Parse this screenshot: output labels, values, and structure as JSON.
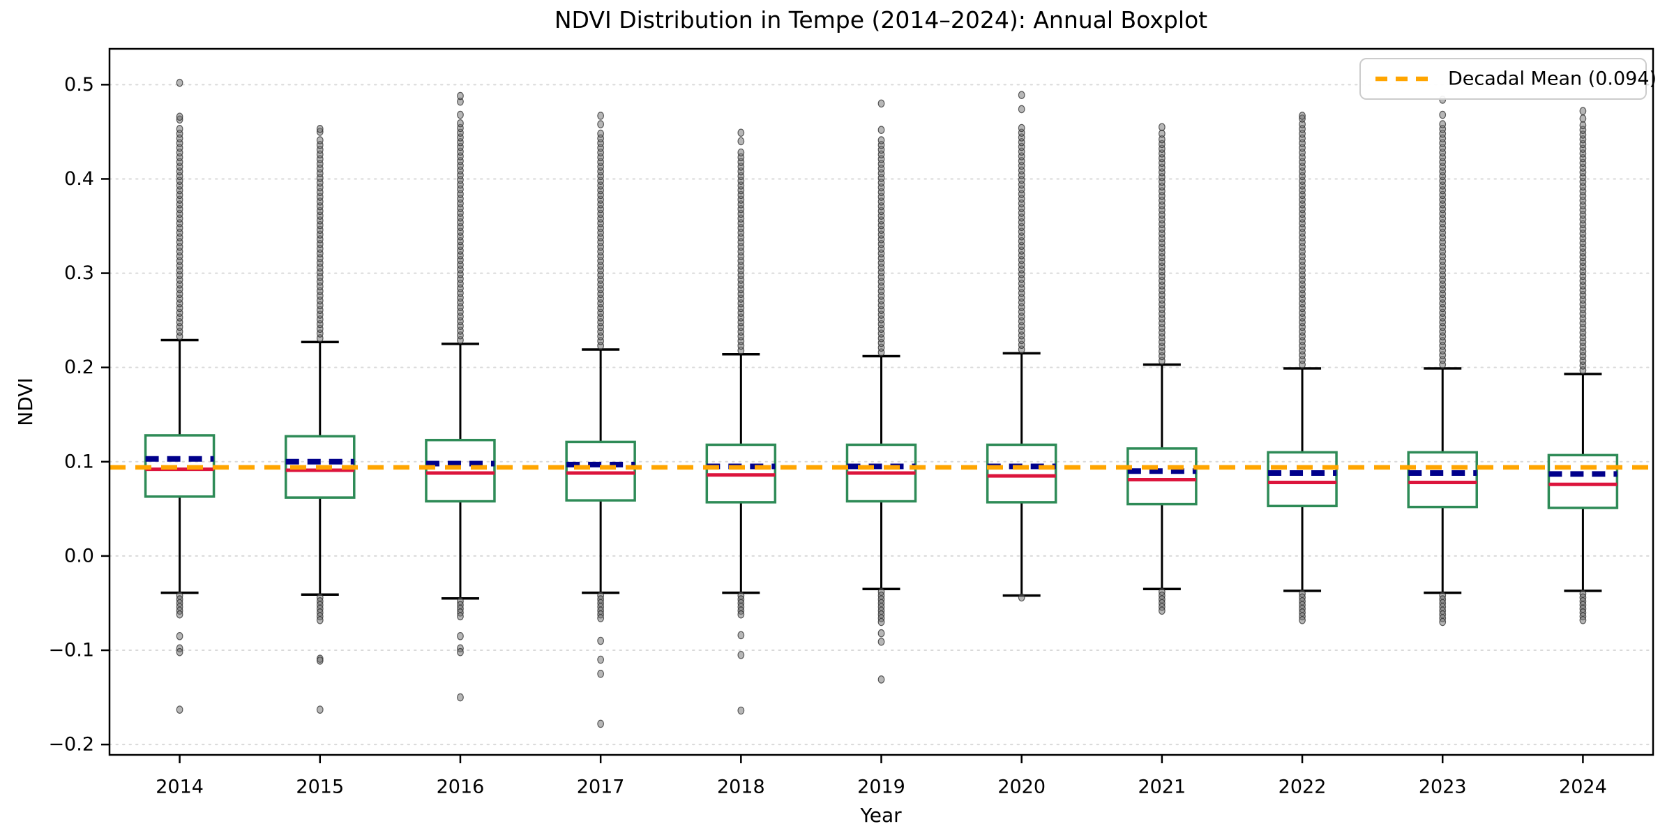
{
  "title": "NDVI Distribution in Tempe (2014–2024): Annual Boxplot",
  "chart_data": {
    "type": "boxplot",
    "title": "NDVI Distribution in Tempe (2014–2024): Annual Boxplot",
    "xlabel": "Year",
    "ylabel": "NDVI",
    "ylim": [
      -0.211,
      0.538
    ],
    "yticks": [
      0.5,
      0.4,
      0.3,
      0.2,
      0.1,
      0.0,
      -0.1,
      -0.2
    ],
    "ytick_labels": [
      "0.5",
      "0.4",
      "0.3",
      "0.2",
      "0.1",
      "0.0",
      "−0.1",
      "−0.2"
    ],
    "grid": "horizontal-dotted",
    "legend": {
      "label": "Decadal Mean (0.094)",
      "position": "upper right"
    },
    "decadal_mean": 0.094,
    "categories": [
      "2014",
      "2015",
      "2016",
      "2017",
      "2018",
      "2019",
      "2020",
      "2021",
      "2022",
      "2023",
      "2024"
    ],
    "series": [
      {
        "year": "2014",
        "whislo": -0.039,
        "q1": 0.063,
        "median": 0.092,
        "mean": 0.103,
        "q3": 0.128,
        "whishi": 0.229,
        "fliers_high_cluster": [
          0.233,
          0.455
        ],
        "fliers_high": [
          0.463,
          0.466,
          0.502
        ],
        "fliers_low_cluster": [
          -0.062,
          -0.042
        ],
        "fliers_low": [
          -0.085,
          -0.098,
          -0.102,
          -0.163
        ]
      },
      {
        "year": "2015",
        "whislo": -0.041,
        "q1": 0.062,
        "median": 0.091,
        "mean": 0.1,
        "q3": 0.127,
        "whishi": 0.227,
        "fliers_high_cluster": [
          0.231,
          0.445
        ],
        "fliers_high": [
          0.45,
          0.453
        ],
        "fliers_low_cluster": [
          -0.07,
          -0.044
        ],
        "fliers_low": [
          -0.109,
          -0.111,
          -0.163
        ]
      },
      {
        "year": "2016",
        "whislo": -0.045,
        "q1": 0.058,
        "median": 0.088,
        "mean": 0.098,
        "q3": 0.123,
        "whishi": 0.225,
        "fliers_high_cluster": [
          0.229,
          0.462
        ],
        "fliers_high": [
          0.468,
          0.482,
          0.488
        ],
        "fliers_low_cluster": [
          -0.066,
          -0.048
        ],
        "fliers_low": [
          -0.085,
          -0.098,
          -0.102,
          -0.15
        ]
      },
      {
        "year": "2017",
        "whislo": -0.039,
        "q1": 0.059,
        "median": 0.088,
        "mean": 0.097,
        "q3": 0.121,
        "whishi": 0.219,
        "fliers_high_cluster": [
          0.223,
          0.452
        ],
        "fliers_high": [
          0.458,
          0.467
        ],
        "fliers_low_cluster": [
          -0.067,
          -0.042
        ],
        "fliers_low": [
          -0.09,
          -0.11,
          -0.125,
          -0.178
        ]
      },
      {
        "year": "2018",
        "whislo": -0.039,
        "q1": 0.057,
        "median": 0.086,
        "mean": 0.095,
        "q3": 0.118,
        "whishi": 0.214,
        "fliers_high_cluster": [
          0.218,
          0.432
        ],
        "fliers_high": [
          0.44,
          0.449
        ],
        "fliers_low_cluster": [
          -0.065,
          -0.042
        ],
        "fliers_low": [
          -0.084,
          -0.105,
          -0.164
        ]
      },
      {
        "year": "2019",
        "whislo": -0.035,
        "q1": 0.058,
        "median": 0.088,
        "mean": 0.095,
        "q3": 0.118,
        "whishi": 0.212,
        "fliers_high_cluster": [
          0.216,
          0.443
        ],
        "fliers_high": [
          0.452,
          0.48
        ],
        "fliers_low_cluster": [
          -0.073,
          -0.038
        ],
        "fliers_low": [
          -0.082,
          -0.091,
          -0.131
        ]
      },
      {
        "year": "2020",
        "whislo": -0.042,
        "q1": 0.057,
        "median": 0.085,
        "mean": 0.095,
        "q3": 0.118,
        "whishi": 0.215,
        "fliers_high_cluster": [
          0.219,
          0.458
        ],
        "fliers_high": [
          0.474,
          0.489
        ],
        "fliers_low_cluster": [
          -0.047,
          -0.044
        ],
        "fliers_low": []
      },
      {
        "year": "2021",
        "whislo": -0.035,
        "q1": 0.055,
        "median": 0.081,
        "mean": 0.09,
        "q3": 0.114,
        "whishi": 0.203,
        "fliers_high_cluster": [
          0.207,
          0.442
        ],
        "fliers_high": [
          0.448,
          0.455
        ],
        "fliers_low_cluster": [
          -0.06,
          -0.038
        ],
        "fliers_low": []
      },
      {
        "year": "2022",
        "whislo": -0.037,
        "q1": 0.053,
        "median": 0.078,
        "mean": 0.088,
        "q3": 0.11,
        "whishi": 0.199,
        "fliers_high_cluster": [
          0.203,
          0.46
        ],
        "fliers_high": [
          0.464,
          0.467
        ],
        "fliers_low_cluster": [
          -0.069,
          -0.04
        ],
        "fliers_low": []
      },
      {
        "year": "2023",
        "whislo": -0.039,
        "q1": 0.052,
        "median": 0.078,
        "mean": 0.088,
        "q3": 0.11,
        "whishi": 0.199,
        "fliers_high_cluster": [
          0.203,
          0.462
        ],
        "fliers_high": [
          0.468,
          0.484
        ],
        "fliers_low_cluster": [
          -0.072,
          -0.042
        ],
        "fliers_low": []
      },
      {
        "year": "2024",
        "whislo": -0.037,
        "q1": 0.051,
        "median": 0.076,
        "mean": 0.087,
        "q3": 0.107,
        "whishi": 0.193,
        "fliers_high_cluster": [
          0.197,
          0.458
        ],
        "fliers_high": [
          0.464,
          0.472
        ],
        "fliers_low_cluster": [
          -0.07,
          -0.04
        ],
        "fliers_low": []
      }
    ],
    "colors": {
      "box_edge": "#2E8B57",
      "median": "#DC143C",
      "mean": "#00008B",
      "decadal_mean_line": "#FFA500",
      "whisker": "#000000",
      "flier_fill": "#707070",
      "flier_edge": "#2a2a2a",
      "grid": "#d9d9d9",
      "background": "#ffffff",
      "legend_border": "#cccccc"
    }
  }
}
